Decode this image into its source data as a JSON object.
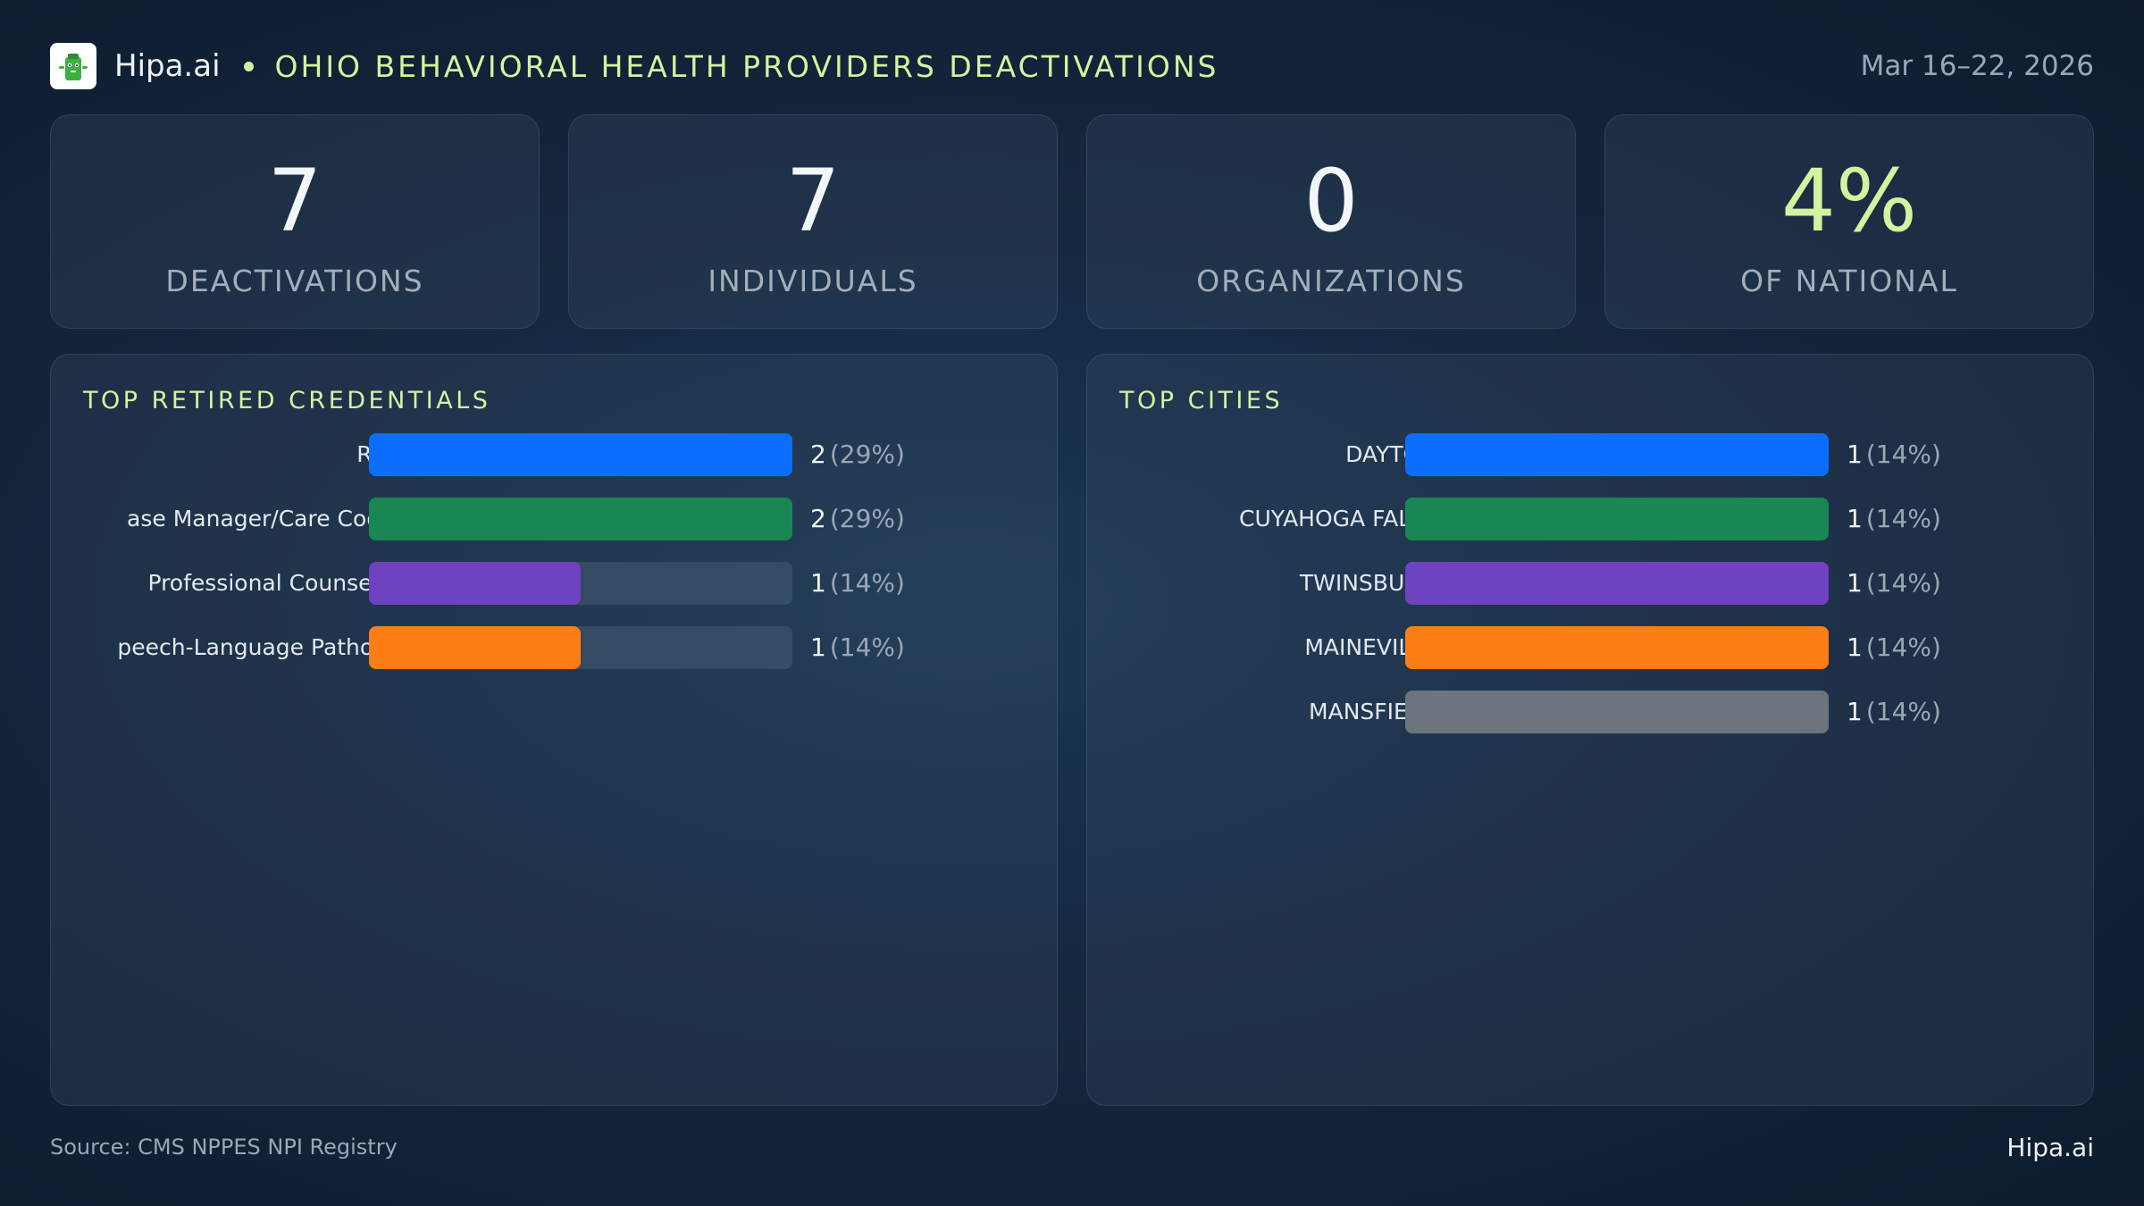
{
  "header": {
    "brand": "Hipa.ai",
    "title": "OHIO BEHAVIORAL HEALTH PROVIDERS DEACTIVATIONS",
    "date": "Mar 16–22, 2026"
  },
  "kpis": [
    {
      "value": "7",
      "label": "DEACTIVATIONS"
    },
    {
      "value": "7",
      "label": "INDIVIDUALS"
    },
    {
      "value": "0",
      "label": "ORGANIZATIONS"
    },
    {
      "value": "4%",
      "label": "OF NATIONAL"
    }
  ],
  "colors": {
    "accent": "#d4f3a0",
    "blue": "#0d6efd",
    "green": "#198754",
    "purple": "#6f42c1",
    "orange": "#fd7e14",
    "gray": "#6c757d"
  },
  "chart_data": [
    {
      "type": "bar",
      "orientation": "horizontal",
      "title": "TOP RETIRED CREDENTIALS",
      "categories": [
        "RBT",
        "ase Manager/Care Coo...",
        "Professional Counselor",
        "peech-Language Pathol..."
      ],
      "values": [
        2,
        2,
        1,
        1
      ],
      "value_labels": [
        "2",
        "2",
        "1",
        "1"
      ],
      "percent_labels": [
        "(29%)",
        "(29%)",
        "(14%)",
        "(14%)"
      ],
      "colors": [
        "#0d6efd",
        "#198754",
        "#6f42c1",
        "#fd7e14"
      ],
      "xlim": [
        0,
        2
      ]
    },
    {
      "type": "bar",
      "orientation": "horizontal",
      "title": "TOP CITIES",
      "categories": [
        "DAYTON",
        "CUYAHOGA FALLS",
        "TWINSBURG",
        "MAINEVILLE",
        "MANSFIELD"
      ],
      "values": [
        1,
        1,
        1,
        1,
        1
      ],
      "value_labels": [
        "1",
        "1",
        "1",
        "1",
        "1"
      ],
      "percent_labels": [
        "(14%)",
        "(14%)",
        "(14%)",
        "(14%)",
        "(14%)"
      ],
      "colors": [
        "#0d6efd",
        "#198754",
        "#6f42c1",
        "#fd7e14",
        "#6c757d"
      ],
      "xlim": [
        0,
        1
      ]
    }
  ],
  "footer": {
    "source": "Source: CMS NPPES NPI Registry",
    "brand": "Hipa.ai"
  }
}
